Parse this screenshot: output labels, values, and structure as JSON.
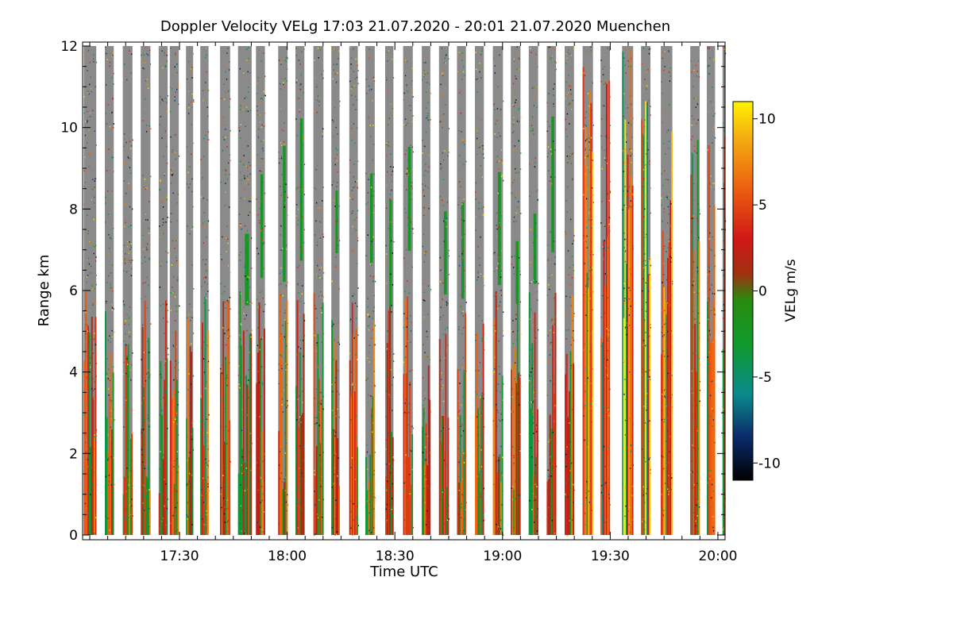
{
  "chart_data": {
    "type": "heatmap",
    "title": "Doppler Velocity VELg   17:03 21.07.2020 - 20:01 21.07.2020 Muenchen",
    "xlabel": "Time UTC",
    "ylabel": "Range km",
    "colorbar_label": "VELg m/s",
    "x_range_minutes": [
      1023,
      1202
    ],
    "y_range_km": [
      0,
      12
    ],
    "x_ticks": [
      {
        "value": 1050,
        "label": "17:30"
      },
      {
        "value": 1080,
        "label": "18:00"
      },
      {
        "value": 1110,
        "label": "18:30"
      },
      {
        "value": 1140,
        "label": "19:00"
      },
      {
        "value": 1170,
        "label": "19:30"
      },
      {
        "value": 1200,
        "label": "20:00"
      }
    ],
    "y_ticks": [
      {
        "value": 0,
        "label": "0"
      },
      {
        "value": 2,
        "label": "2"
      },
      {
        "value": 4,
        "label": "4"
      },
      {
        "value": 6,
        "label": "6"
      },
      {
        "value": 8,
        "label": "8"
      },
      {
        "value": 10,
        "label": "10"
      },
      {
        "value": 12,
        "label": "12"
      }
    ],
    "colorbar_range": [
      -11,
      11
    ],
    "colorbar_ticks": [
      {
        "value": 10,
        "label": "10"
      },
      {
        "value": 5,
        "label": "5"
      },
      {
        "value": 0,
        "label": "0"
      },
      {
        "value": -5,
        "label": "-5"
      },
      {
        "value": -10,
        "label": "-10"
      }
    ],
    "colorscale": [
      {
        "v": -11,
        "c": "#000000"
      },
      {
        "v": -8.5,
        "c": "#0a2a6a"
      },
      {
        "v": -6,
        "c": "#0a8a8a"
      },
      {
        "v": -3,
        "c": "#0f9a2a"
      },
      {
        "v": -0.5,
        "c": "#2a8a10"
      },
      {
        "v": 1,
        "c": "#a03010"
      },
      {
        "v": 3,
        "c": "#d01818"
      },
      {
        "v": 6,
        "c": "#ec6010"
      },
      {
        "v": 9,
        "c": "#f4b010"
      },
      {
        "v": 11,
        "c": "#fff400"
      }
    ],
    "noise_color": "#8a8a8a",
    "profile_blocks_minutes": [
      [
        1023.3,
        1026.8
      ],
      [
        1029.2,
        1031.7
      ],
      [
        1034.2,
        1036.9
      ],
      [
        1039.2,
        1041.9
      ],
      [
        1044.2,
        1046.7
      ],
      [
        1047.3,
        1049.8
      ],
      [
        1051.8,
        1053.8
      ],
      [
        1055.8,
        1058.1
      ],
      [
        1061.3,
        1064.1
      ],
      [
        1066.3,
        1070.1
      ],
      [
        1071.3,
        1073.8
      ],
      [
        1077.5,
        1080.1
      ],
      [
        1082.3,
        1084.8
      ],
      [
        1087.3,
        1090.1
      ],
      [
        1092.3,
        1094.6
      ],
      [
        1097.3,
        1099.7
      ],
      [
        1101.8,
        1104.4
      ],
      [
        1107.3,
        1109.6
      ],
      [
        1112.3,
        1115.0
      ],
      [
        1117.5,
        1119.9
      ],
      [
        1122.3,
        1125.0
      ],
      [
        1127.3,
        1129.8
      ],
      [
        1132.3,
        1134.8
      ],
      [
        1137.3,
        1140.1
      ],
      [
        1142.3,
        1145.0
      ],
      [
        1147.3,
        1149.9
      ],
      [
        1152.3,
        1154.9
      ],
      [
        1157.3,
        1159.9
      ],
      [
        1162.3,
        1165.2
      ],
      [
        1167.3,
        1169.9
      ],
      [
        1173.3,
        1176.4
      ],
      [
        1178.6,
        1181.2
      ],
      [
        1184.1,
        1187.3
      ],
      [
        1192.3,
        1194.9
      ],
      [
        1196.9,
        1199.2
      ],
      [
        1201.3,
        1202.0
      ]
    ]
  }
}
